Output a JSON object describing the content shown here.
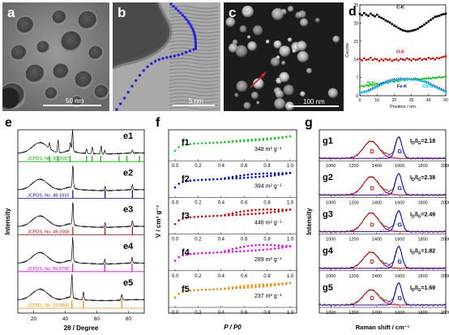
{
  "micrographs": {
    "a": {
      "label": "a",
      "scale_label": "50 nm"
    },
    "b": {
      "label": "b",
      "scale_label": "5 nm"
    },
    "c": {
      "label": "c",
      "scale_label": "100 nm"
    }
  },
  "chart_data": [
    {
      "panel": "d",
      "type": "scatter",
      "xlabel": "Position / nm",
      "ylabel": "Counts",
      "xticks": [
        0,
        10,
        20,
        30,
        40,
        50
      ],
      "yticks": [
        0,
        7,
        14,
        21,
        28,
        35
      ],
      "xlim": [
        0,
        50
      ],
      "ylim": [
        0,
        35
      ],
      "series": [
        {
          "name": "C-K",
          "color": "#000000",
          "marker": "square",
          "values": [
            31.5,
            31.0,
            31.8,
            31.2,
            30.8,
            31.6,
            31.0,
            30.6,
            31.2,
            30.4,
            30.0,
            29.6,
            29.0,
            28.6,
            28.2,
            27.6,
            27.0,
            26.6,
            26.0,
            25.6,
            25.2,
            25.0,
            24.8,
            24.8,
            25.0,
            25.2,
            25.4,
            25.8,
            26.4,
            26.8,
            27.4,
            28.0,
            28.6,
            29.2,
            29.8,
            30.4,
            30.6,
            30.8,
            31.2,
            31.4,
            31.6
          ]
        },
        {
          "name": "O-K",
          "color": "#e00000",
          "marker": "circle",
          "values": [
            14.2,
            13.6,
            14.4,
            13.8,
            14.0,
            14.6,
            13.8,
            14.2,
            14.0,
            13.4,
            14.0,
            13.6,
            14.2,
            13.8,
            14.0,
            13.4,
            13.8,
            14.0,
            13.6,
            14.2,
            14.0,
            13.8,
            14.4,
            14.0,
            13.6,
            14.2,
            13.8,
            14.0,
            14.4,
            13.8,
            14.2,
            14.0,
            14.6,
            14.2,
            14.4,
            14.0,
            14.6,
            14.4,
            14.8,
            15.0,
            15.2
          ]
        },
        {
          "name": "N-K",
          "color": "#00c000",
          "marker": "diamond",
          "values": [
            3.4,
            3.8,
            3.6,
            4.0,
            3.8,
            4.2,
            4.0,
            4.4,
            4.6,
            4.4,
            4.8,
            5.0,
            5.2,
            5.0,
            5.4,
            5.6,
            5.4,
            5.8,
            5.6,
            6.0,
            6.2,
            6.0,
            6.2,
            6.4,
            6.2,
            6.4,
            6.6,
            6.4,
            6.2,
            6.4,
            6.6,
            6.6,
            6.8,
            6.6,
            7.0,
            6.8,
            7.0,
            7.2,
            7.0,
            7.2,
            7.4
          ]
        },
        {
          "name": "Fe-K",
          "color": "#0000cc",
          "marker": "triangle",
          "values": [
            1.2,
            1.4,
            1.6,
            1.8,
            2.2,
            2.6,
            3.0,
            3.4,
            3.8,
            4.2,
            4.6,
            5.0,
            5.4,
            5.8,
            6.0,
            6.2,
            6.4,
            6.4,
            6.6,
            6.6,
            6.6,
            6.6,
            6.6,
            6.6,
            6.4,
            6.4,
            6.4,
            6.2,
            6.0,
            5.8,
            5.6,
            5.4,
            5.0,
            4.6,
            4.2,
            3.8,
            3.4,
            3.0,
            2.6,
            2.2,
            1.8
          ]
        },
        {
          "name": "Co-K",
          "color": "#00bfff",
          "marker": "circle",
          "values": [
            1.0,
            1.2,
            1.4,
            1.6,
            1.8,
            2.2,
            2.6,
            3.0,
            3.4,
            3.8,
            4.2,
            4.6,
            5.0,
            5.4,
            5.6,
            5.8,
            6.0,
            6.2,
            6.2,
            6.2,
            6.4,
            6.4,
            6.4,
            6.4,
            6.2,
            6.2,
            6.2,
            6.0,
            5.8,
            5.6,
            5.4,
            5.0,
            4.6,
            4.2,
            3.8,
            3.4,
            3.0,
            2.6,
            2.2,
            1.8,
            1.4
          ]
        }
      ]
    },
    {
      "panel": "e",
      "type": "line",
      "xlabel": "2θ / Degree",
      "ylabel": "Intensity",
      "xticks": [
        20,
        40,
        60,
        80
      ],
      "xlim": [
        10,
        90
      ],
      "labels": [
        "e1",
        "e2",
        "e3",
        "e4",
        "e5"
      ],
      "references": [
        {
          "label": "JCPDS, No. 50-2087",
          "color": "#00b000",
          "peaks": [
            30,
            35.5,
            43,
            53.5,
            57,
            62.5,
            74,
            79,
            87
          ]
        },
        {
          "label": "JCPDS, No. 48-1816",
          "color": "#0000cc",
          "peaks": [
            44.8,
            65.2,
            82.5
          ]
        },
        {
          "label": "JCPDS, No. 49-1568",
          "color": "#cc0000",
          "peaks": [
            44.8,
            65.2,
            82.5
          ]
        },
        {
          "label": "JCPDS, No. 50-0795",
          "color": "#e000e0",
          "peaks": [
            44.7,
            65.0,
            82.3
          ]
        },
        {
          "label": "JCPDS, No. 15-0806",
          "color": "#ff8c00",
          "peaks": [
            44.2,
            51.5,
            75.8
          ]
        }
      ],
      "diffraction_peaks": [
        [
          [
            30.1,
            0.25
          ],
          [
            35.5,
            0.55
          ],
          [
            43.2,
            0.35
          ],
          [
            44.6,
            0.9
          ],
          [
            53.5,
            0.2
          ],
          [
            57.1,
            0.3
          ],
          [
            62.7,
            0.35
          ],
          [
            65.0,
            0.15
          ],
          [
            82.5,
            0.12
          ]
        ],
        [
          [
            44.8,
            1.0
          ],
          [
            65.2,
            0.18
          ],
          [
            82.5,
            0.22
          ]
        ],
        [
          [
            44.8,
            1.0
          ],
          [
            65.2,
            0.2
          ],
          [
            82.5,
            0.24
          ]
        ],
        [
          [
            44.7,
            1.0
          ],
          [
            65.0,
            0.2
          ],
          [
            82.3,
            0.25
          ]
        ],
        [
          [
            44.2,
            1.0
          ],
          [
            51.5,
            0.35
          ],
          [
            75.8,
            0.25
          ]
        ]
      ]
    },
    {
      "panel": "f",
      "type": "scatter",
      "xlabel": "P / P0",
      "ylabel": "V / cm³ g⁻¹",
      "xticks": [
        0.0,
        0.2,
        0.4,
        0.6,
        0.8,
        1.0
      ],
      "xtick_labels": [
        "0.0",
        "0.2",
        "0.4",
        "0.6",
        "0.8",
        "1.0"
      ],
      "xlim": [
        0,
        1
      ],
      "series": [
        {
          "name": "f1",
          "annotation": "348 m² g⁻¹",
          "color": "#22cc22",
          "hysteresis": 0.06
        },
        {
          "name": "f2",
          "annotation": "394 m² g⁻¹",
          "color": "#0000dd",
          "hysteresis": 0.18
        },
        {
          "name": "f3",
          "annotation": "446 m² g⁻¹",
          "color": "#dd0000",
          "hysteresis": 0.22
        },
        {
          "name": "f4",
          "annotation": "289 m² g⁻¹",
          "color": "#ee00ee",
          "hysteresis": 0.3
        },
        {
          "name": "f5",
          "annotation": "237 m² g⁻¹",
          "color": "#ff8c00",
          "hysteresis": 0.12
        }
      ]
    },
    {
      "panel": "g",
      "type": "line",
      "xlabel": "Raman shift / cm⁻¹",
      "ylabel": "Intensity",
      "xticks": [
        1000,
        1200,
        1400,
        1600,
        1800,
        2000
      ],
      "xlim": [
        900,
        2000
      ],
      "d_band_label": "D",
      "g_band_label": "G",
      "ratio_prefix": "I",
      "ratio_sub_d": "D",
      "ratio_sub_g": "G",
      "series": [
        {
          "name": "g1",
          "ratio": "=2.18",
          "d_height": 0.66,
          "g_height": 0.82
        },
        {
          "name": "g2",
          "ratio": "=2.38",
          "d_height": 0.7,
          "g_height": 0.82
        },
        {
          "name": "g3",
          "ratio": "=2.49",
          "d_height": 0.72,
          "g_height": 0.8
        },
        {
          "name": "g4",
          "ratio": "=1.82",
          "d_height": 0.62,
          "g_height": 0.84
        },
        {
          "name": "g5",
          "ratio": "=1.69",
          "d_height": 0.58,
          "g_height": 0.85
        }
      ]
    }
  ]
}
